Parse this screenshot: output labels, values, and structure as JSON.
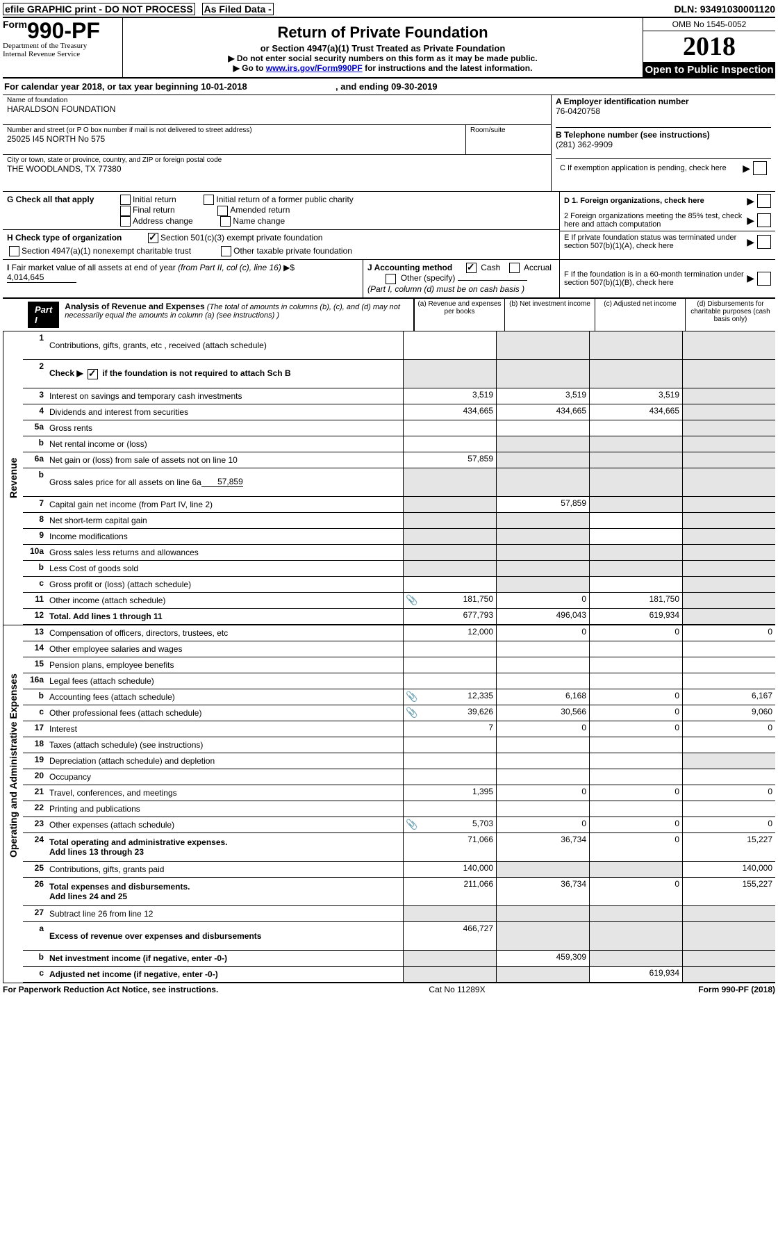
{
  "topbar": {
    "text1": "efile GRAPHIC print - DO NOT PROCESS",
    "text2": "As Filed Data -",
    "dln": "DLN: 93491030001120"
  },
  "header": {
    "form_small": "Form",
    "form_num": "990-PF",
    "dept1": "Department of the Treasury",
    "dept2": "Internal Revenue Service",
    "title": "Return of Private Foundation",
    "subtitle": "or Section 4947(a)(1) Trust Treated as Private Foundation",
    "instr1": "▶ Do not enter social security numbers on this form as it may be made public.",
    "instr2_pre": "▶ Go to ",
    "instr2_link": "www.irs.gov/Form990PF",
    "instr2_post": " for instructions and the latest information.",
    "omb": "OMB No  1545-0052",
    "year": "2018",
    "open": "Open to Public Inspection"
  },
  "calrow": {
    "pre": "For calendar year 2018, or tax year beginning 10-01-2018",
    "mid": ", and ending 09-30-2019"
  },
  "id": {
    "name_label": "Name of foundation",
    "name": "HARALDSON FOUNDATION",
    "street_label": "Number and street (or P O  box number if mail is not delivered to street address)",
    "street": "25025 I45 NORTH No 575",
    "room_label": "Room/suite",
    "city_label": "City or town, state or province, country, and ZIP or foreign postal code",
    "city": "THE WOODLANDS, TX  77380",
    "a_label": "A Employer identification number",
    "a_val": "76-0420758",
    "b_label": "B Telephone number (see instructions)",
    "b_val": "(281) 362-9909",
    "c_label": "C  If exemption application is pending, check here"
  },
  "g": {
    "label": "G Check all that apply",
    "o1": "Initial return",
    "o2": "Initial return of a former public charity",
    "o3": "Final return",
    "o4": "Amended return",
    "o5": "Address change",
    "o6": "Name change"
  },
  "h": {
    "label": "H Check type of organization",
    "h1": "Section 501(c)(3) exempt private foundation",
    "h2": "Section 4947(a)(1) nonexempt charitable trust",
    "h3": "Other taxable private foundation"
  },
  "d": {
    "d1": "D 1. Foreign organizations, check here",
    "d2": "2  Foreign organizations meeting the 85% test, check here and attach computation"
  },
  "e": {
    "label": "E  If private foundation status was terminated under section 507(b)(1)(A), check here"
  },
  "i": {
    "label": "I Fair market value of all assets at end of year (from Part II, col  (c), line 16) ▶$",
    "val": "4,014,645"
  },
  "j": {
    "label": "J Accounting method",
    "cash": "Cash",
    "accrual": "Accrual",
    "other": "Other (specify)",
    "note": "(Part I, column (d) must be on cash basis )"
  },
  "f": {
    "label": "F  If the foundation is in a 60-month termination under section 507(b)(1)(B), check here"
  },
  "part1": {
    "label": "Part I",
    "title": "Analysis of Revenue and Expenses",
    "note": " (The total of amounts in columns (b), (c), and (d) may not necessarily equal the amounts in column (a) (see instructions) )",
    "col_a": "(a) Revenue and expenses per books",
    "col_b": "(b) Net investment income",
    "col_c": "(c) Adjusted net income",
    "col_d": "(d) Disbursements for charitable purposes (cash basis only)"
  },
  "revenue_label": "Revenue",
  "opex_label": "Operating and Administrative Expenses",
  "lines": {
    "l1": {
      "n": "1",
      "d": "Contributions, gifts, grants, etc , received (attach schedule)"
    },
    "l2": {
      "n": "2",
      "d_pre": "Check ▶",
      "d_post": " if the foundation is ",
      "bold": "not",
      "tail": " required to attach Sch  B"
    },
    "l3": {
      "n": "3",
      "d": "Interest on savings and temporary cash investments",
      "a": "3,519",
      "b": "3,519",
      "c": "3,519"
    },
    "l4": {
      "n": "4",
      "d": "Dividends and interest from securities",
      "a": "434,665",
      "b": "434,665",
      "c": "434,665"
    },
    "l5a": {
      "n": "5a",
      "d": "Gross rents"
    },
    "l5b": {
      "n": "b",
      "d": "Net rental income or (loss)"
    },
    "l6a": {
      "n": "6a",
      "d": "Net gain or (loss) from sale of assets not on line 10",
      "a": "57,859"
    },
    "l6b": {
      "n": "b",
      "d": "Gross sales price for all assets on line 6a",
      "u": "57,859"
    },
    "l7": {
      "n": "7",
      "d": "Capital gain net income (from Part IV, line 2)",
      "b": "57,859"
    },
    "l8": {
      "n": "8",
      "d": "Net short-term capital gain"
    },
    "l9": {
      "n": "9",
      "d": "Income modifications"
    },
    "l10a": {
      "n": "10a",
      "d": "Gross sales less returns and allowances"
    },
    "l10b": {
      "n": "b",
      "d": "Less  Cost of goods sold"
    },
    "l10c": {
      "n": "c",
      "d": "Gross profit or (loss) (attach schedule)"
    },
    "l11": {
      "n": "11",
      "d": "Other income (attach schedule)",
      "pop": true,
      "a": "181,750",
      "b": "0",
      "c": "181,750"
    },
    "l12": {
      "n": "12",
      "d": "Total. Add lines 1 through 11",
      "bold": true,
      "a": "677,793",
      "b": "496,043",
      "c": "619,934"
    },
    "l13": {
      "n": "13",
      "d": "Compensation of officers, directors, trustees, etc",
      "a": "12,000",
      "b": "0",
      "c": "0",
      "dd": "0"
    },
    "l14": {
      "n": "14",
      "d": "Other employee salaries and wages"
    },
    "l15": {
      "n": "15",
      "d": "Pension plans, employee benefits"
    },
    "l16a": {
      "n": "16a",
      "d": "Legal fees (attach schedule)"
    },
    "l16b": {
      "n": "b",
      "d": "Accounting fees (attach schedule)",
      "pop": true,
      "a": "12,335",
      "b": "6,168",
      "c": "0",
      "dd": "6,167"
    },
    "l16c": {
      "n": "c",
      "d": "Other professional fees (attach schedule)",
      "pop": true,
      "a": "39,626",
      "b": "30,566",
      "c": "0",
      "dd": "9,060"
    },
    "l17": {
      "n": "17",
      "d": "Interest",
      "a": "7",
      "b": "0",
      "c": "0",
      "dd": "0"
    },
    "l18": {
      "n": "18",
      "d": "Taxes (attach schedule) (see instructions)"
    },
    "l19": {
      "n": "19",
      "d": "Depreciation (attach schedule) and depletion"
    },
    "l20": {
      "n": "20",
      "d": "Occupancy"
    },
    "l21": {
      "n": "21",
      "d": "Travel, conferences, and meetings",
      "a": "1,395",
      "b": "0",
      "c": "0",
      "dd": "0"
    },
    "l22": {
      "n": "22",
      "d": "Printing and publications"
    },
    "l23": {
      "n": "23",
      "d": "Other expenses (attach schedule)",
      "pop": true,
      "a": "5,703",
      "b": "0",
      "c": "0",
      "dd": "0"
    },
    "l24": {
      "n": "24",
      "d": "Total operating and administrative expenses.",
      "d2": "Add lines 13 through 23",
      "bold": true,
      "a": "71,066",
      "b": "36,734",
      "c": "0",
      "dd": "15,227"
    },
    "l25": {
      "n": "25",
      "d": "Contributions, gifts, grants paid",
      "a": "140,000",
      "dd": "140,000"
    },
    "l26": {
      "n": "26",
      "d": "Total expenses and disbursements. ",
      "d2": "Add lines 24 and 25",
      "bold": true,
      "a": "211,066",
      "b": "36,734",
      "c": "0",
      "dd": "155,227"
    },
    "l27": {
      "n": "27",
      "d": "Subtract line 26 from line 12"
    },
    "l27a": {
      "n": "a",
      "d": "Excess of revenue over expenses and disbursements",
      "bold": true,
      "a": "466,727"
    },
    "l27b": {
      "n": "b",
      "d": "Net investment income (if negative, enter -0-)",
      "bold": true,
      "b": "459,309"
    },
    "l27c": {
      "n": "c",
      "d": "Adjusted net income (if negative, enter -0-)",
      "bold": true,
      "c": "619,934"
    }
  },
  "footer": {
    "left": "For Paperwork Reduction Act Notice, see instructions.",
    "center": "Cat  No  11289X",
    "right": "Form 990-PF (2018)"
  }
}
